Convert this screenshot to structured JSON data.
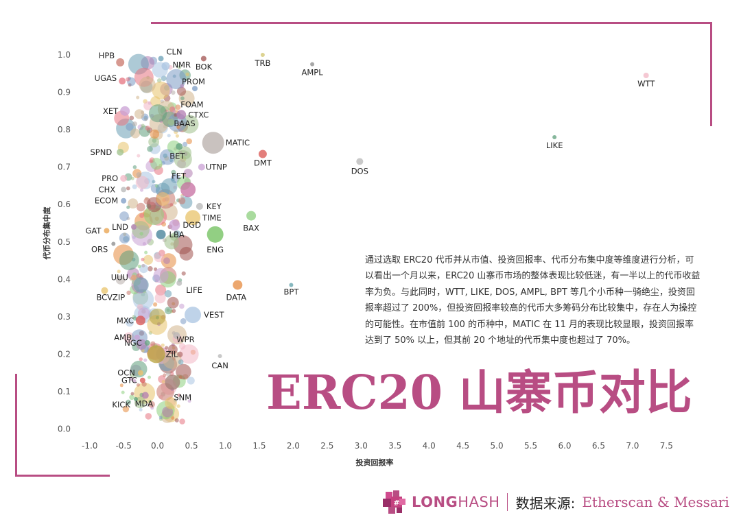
{
  "headline": "ERC20 山寨币对比",
  "description": "通过选取 ERC20 代币并从市值、投资回报率、代币分布集中度等维度进行分析，可以看出一个月以来，ERC20 山寨币市场的整体表现比较低迷，有一半以上的代币收益率为负。与此同时，WTT, LIKE, DOS, AMPL, BPT 等几个小币种一骑绝尘，投资回报率超过了 200%，但投资回报率较高的代币大多筹码分布比较集中，存在人为操控的可能性。在市值前 100 的币种中，MATIC 在 11 月的表现比较显眼，投资回报率达到了 50% 以上，但其前 20 个地址的代币集中度也超过了 70%。",
  "footer": {
    "brand_bold": "LONG",
    "brand_light": "HASH",
    "source_label": "数据来源:",
    "source_value": "Etherscan & Messari"
  },
  "colors": {
    "accent": "#b84d83"
  },
  "chart_data": {
    "type": "scatter",
    "xlabel": "投资回报率",
    "ylabel": "代币分布集中度",
    "xlim": [
      -1.1,
      7.8
    ],
    "ylim": [
      -0.01,
      1.02
    ],
    "x_ticks": [
      "-1.0",
      "-0.5",
      "0.0",
      "0.5",
      "1.0",
      "1.5",
      "2.0",
      "2.5",
      "3.0",
      "3.5",
      "4.0",
      "4.5",
      "5.0",
      "5.5",
      "6.0",
      "6.5",
      "7.0",
      "7.5"
    ],
    "x_tick_values": [
      -1.0,
      -0.5,
      0.0,
      0.5,
      1.0,
      1.5,
      2.0,
      2.5,
      3.0,
      3.5,
      4.0,
      4.5,
      5.0,
      5.5,
      6.0,
      6.5,
      7.0,
      7.5
    ],
    "y_ticks": [
      "0.0",
      "0.1",
      "0.2",
      "0.3",
      "0.4",
      "0.5",
      "0.6",
      "0.7",
      "0.8",
      "0.9",
      "1.0"
    ],
    "y_tick_values": [
      0.0,
      0.1,
      0.2,
      0.3,
      0.4,
      0.5,
      0.6,
      0.7,
      0.8,
      0.9,
      1.0
    ],
    "grid": false,
    "labeled_points": [
      {
        "label": "CLN",
        "x": 0.05,
        "y": 0.99,
        "size": 4,
        "color": "#6a9fb5"
      },
      {
        "label": "HPB",
        "x": -0.55,
        "y": 0.98,
        "size": 6,
        "color": "#c9776b"
      },
      {
        "label": "NMR",
        "x": 0.12,
        "y": 0.97,
        "size": 6,
        "color": "#a9c4e2"
      },
      {
        "label": "BOK",
        "x": 0.68,
        "y": 0.99,
        "size": 4,
        "color": "#a0524f"
      },
      {
        "label": "TRB",
        "x": 1.55,
        "y": 1.0,
        "size": 3,
        "color": "#d2c46e"
      },
      {
        "label": "AMPL",
        "x": 2.28,
        "y": 0.975,
        "size": 3,
        "color": "#8a8a8a"
      },
      {
        "label": "WTT",
        "x": 7.2,
        "y": 0.945,
        "size": 4,
        "color": "#f2b6c4"
      },
      {
        "label": "UGAS",
        "x": -0.52,
        "y": 0.93,
        "size": 5,
        "color": "#e5737f"
      },
      {
        "label": "PROM",
        "x": 0.55,
        "y": 0.91,
        "size": 4,
        "color": "#7b9bc4"
      },
      {
        "label": "XET",
        "x": -0.48,
        "y": 0.85,
        "size": 7,
        "color": "#c9a0d4"
      },
      {
        "label": "FOAM",
        "x": 0.3,
        "y": 0.86,
        "size": 4,
        "color": "#e5a17b"
      },
      {
        "label": "CTXC",
        "x": 0.35,
        "y": 0.84,
        "size": 7,
        "color": "#b07bb0"
      },
      {
        "label": "BAAS",
        "x": 0.2,
        "y": 0.82,
        "size": 5,
        "color": "#9ec08a"
      },
      {
        "label": "MATIC",
        "x": 0.82,
        "y": 0.765,
        "size": 16,
        "color": "#b7ada9"
      },
      {
        "label": "LIKE",
        "x": 5.85,
        "y": 0.78,
        "size": 3,
        "color": "#5e9f7b"
      },
      {
        "label": "SPND",
        "x": -0.55,
        "y": 0.74,
        "size": 5,
        "color": "#9ec08a"
      },
      {
        "label": "BET",
        "x": 0.32,
        "y": 0.755,
        "size": 5,
        "color": "#5e9f7b"
      },
      {
        "label": "DMT",
        "x": 1.55,
        "y": 0.735,
        "size": 6,
        "color": "#d9534f"
      },
      {
        "label": "UTNP",
        "x": 0.65,
        "y": 0.7,
        "size": 5,
        "color": "#c9a0d4"
      },
      {
        "label": "DOS",
        "x": 2.98,
        "y": 0.715,
        "size": 5,
        "color": "#b7b7b7"
      },
      {
        "label": "PRO",
        "x": -0.5,
        "y": 0.67,
        "size": 5,
        "color": "#f2b6c4"
      },
      {
        "label": "FET",
        "x": 0.45,
        "y": 0.64,
        "size": 11,
        "color": "#c56ea0"
      },
      {
        "label": "CHX",
        "x": -0.5,
        "y": 0.64,
        "size": 4,
        "color": "#b7b7b7"
      },
      {
        "label": "ECOM",
        "x": -0.5,
        "y": 0.61,
        "size": 4,
        "color": "#7b9bc4"
      },
      {
        "label": "KEY",
        "x": 0.62,
        "y": 0.595,
        "size": 5,
        "color": "#b7b7b7"
      },
      {
        "label": "TIME",
        "x": 0.52,
        "y": 0.565,
        "size": 11,
        "color": "#e8c36a"
      },
      {
        "label": "BAX",
        "x": 1.38,
        "y": 0.57,
        "size": 7,
        "color": "#8ccf7e"
      },
      {
        "label": "LND",
        "x": -0.35,
        "y": 0.54,
        "size": 4,
        "color": "#b07bb0"
      },
      {
        "label": "GAT",
        "x": -0.75,
        "y": 0.53,
        "size": 4,
        "color": "#e8a04a"
      },
      {
        "label": "DGD",
        "x": 0.25,
        "y": 0.545,
        "size": 8,
        "color": "#c9a0d4"
      },
      {
        "label": "LBA",
        "x": 0.05,
        "y": 0.52,
        "size": 7,
        "color": "#3f7e96"
      },
      {
        "label": "ENG",
        "x": 0.85,
        "y": 0.52,
        "size": 12,
        "color": "#6dbf5a"
      },
      {
        "label": "ORS",
        "x": -0.65,
        "y": 0.495,
        "size": 3,
        "color": "#8a8a8a"
      },
      {
        "label": "UUU",
        "x": -0.35,
        "y": 0.405,
        "size": 4,
        "color": "#e5a17b"
      },
      {
        "label": "DATA",
        "x": 1.18,
        "y": 0.385,
        "size": 7,
        "color": "#e58a3e"
      },
      {
        "label": "BPT",
        "x": 1.97,
        "y": 0.385,
        "size": 3,
        "color": "#5e9fa8"
      },
      {
        "label": "LIFE",
        "x": 0.32,
        "y": 0.39,
        "size": 4,
        "color": "#b7b7b7"
      },
      {
        "label": "BCVZIP",
        "x": -0.78,
        "y": 0.37,
        "size": 5,
        "color": "#e8c36a"
      },
      {
        "label": "VEST",
        "x": 0.52,
        "y": 0.305,
        "size": 12,
        "color": "#a9c4e2"
      },
      {
        "label": "MXC",
        "x": -0.25,
        "y": 0.29,
        "size": 7,
        "color": "#d9534f"
      },
      {
        "label": "AMB",
        "x": -0.3,
        "y": 0.245,
        "size": 4,
        "color": "#c9a0d4"
      },
      {
        "label": "WPR",
        "x": 0.28,
        "y": 0.25,
        "size": 5,
        "color": "#b7b7b7"
      },
      {
        "label": "NGC",
        "x": -0.15,
        "y": 0.23,
        "size": 4,
        "color": "#5e9f7b"
      },
      {
        "label": "ZIL",
        "x": -0.02,
        "y": 0.2,
        "size": 13,
        "color": "#b5a03a"
      },
      {
        "label": "CAN",
        "x": 0.92,
        "y": 0.195,
        "size": 3,
        "color": "#b7b7b7"
      },
      {
        "label": "OCN",
        "x": -0.25,
        "y": 0.15,
        "size": 4,
        "color": "#f2c06a"
      },
      {
        "label": "GTC",
        "x": -0.22,
        "y": 0.13,
        "size": 4,
        "color": "#d9534f"
      },
      {
        "label": "SNM",
        "x": 0.22,
        "y": 0.125,
        "size": 11,
        "color": "#a07c74"
      },
      {
        "label": "MDA",
        "x": -0.18,
        "y": 0.09,
        "size": 5,
        "color": "#b07bb0"
      },
      {
        "label": "KICK",
        "x": -0.32,
        "y": 0.08,
        "size": 3,
        "color": "#5e9f7b"
      }
    ]
  }
}
